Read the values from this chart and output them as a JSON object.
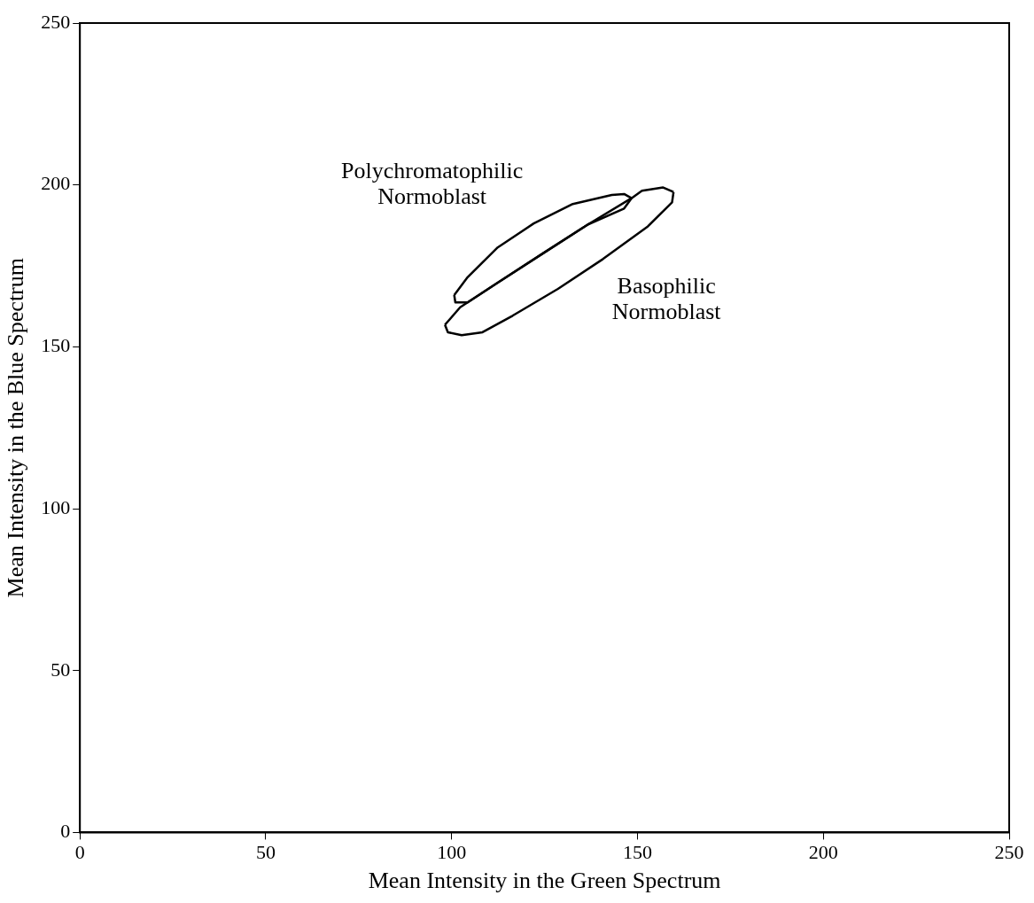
{
  "chart_data": {
    "type": "line",
    "xlabel": "Mean Intensity in the Green Spectrum",
    "ylabel": "Mean Intensity in the Blue Spectrum",
    "xlim": [
      0,
      250
    ],
    "xticks": [
      0,
      50,
      100,
      150,
      200,
      250
    ],
    "ylim": [
      0,
      250
    ],
    "yticks": [
      0,
      50,
      100,
      150,
      200,
      250
    ],
    "grid": false,
    "legend": false,
    "marker": "none",
    "line_style": "solid",
    "series": [
      {
        "name": "Polychromatophilic Normoblast",
        "color": "#000000",
        "x": [
          100.7,
          104.3,
          112.4,
          122.1,
          132.6,
          143.1,
          146.4,
          148.4
        ],
        "values": [
          166.0,
          171.5,
          180.7,
          188.1,
          194.1,
          196.9,
          197.2,
          195.9
        ]
      },
      {
        "color": "#000000",
        "x": [
          100.7,
          101.0,
          104.3,
          112.4,
          124.5,
          136.7,
          146.4,
          148.4
        ],
        "values": [
          166.0,
          163.7,
          163.7,
          169.8,
          178.8,
          187.8,
          192.7,
          195.9
        ]
      },
      {
        "color": "#000000",
        "x": [
          98.2,
          102.3,
          112.4,
          124.5,
          136.7,
          148.4,
          151.2,
          156.9,
          159.7
        ],
        "values": [
          156.8,
          162.2,
          169.8,
          178.8,
          187.8,
          195.9,
          198.2,
          199.2,
          197.8
        ]
      },
      {
        "name": "Basophilic Normoblast",
        "color": "#000000",
        "x": [
          98.2,
          99.0,
          102.7,
          108.3,
          116.4,
          128.6,
          140.7,
          152.8,
          159.3,
          159.7
        ],
        "values": [
          156.8,
          154.5,
          153.6,
          154.5,
          159.6,
          167.9,
          177.1,
          187.2,
          194.6,
          197.8
        ]
      }
    ]
  }
}
